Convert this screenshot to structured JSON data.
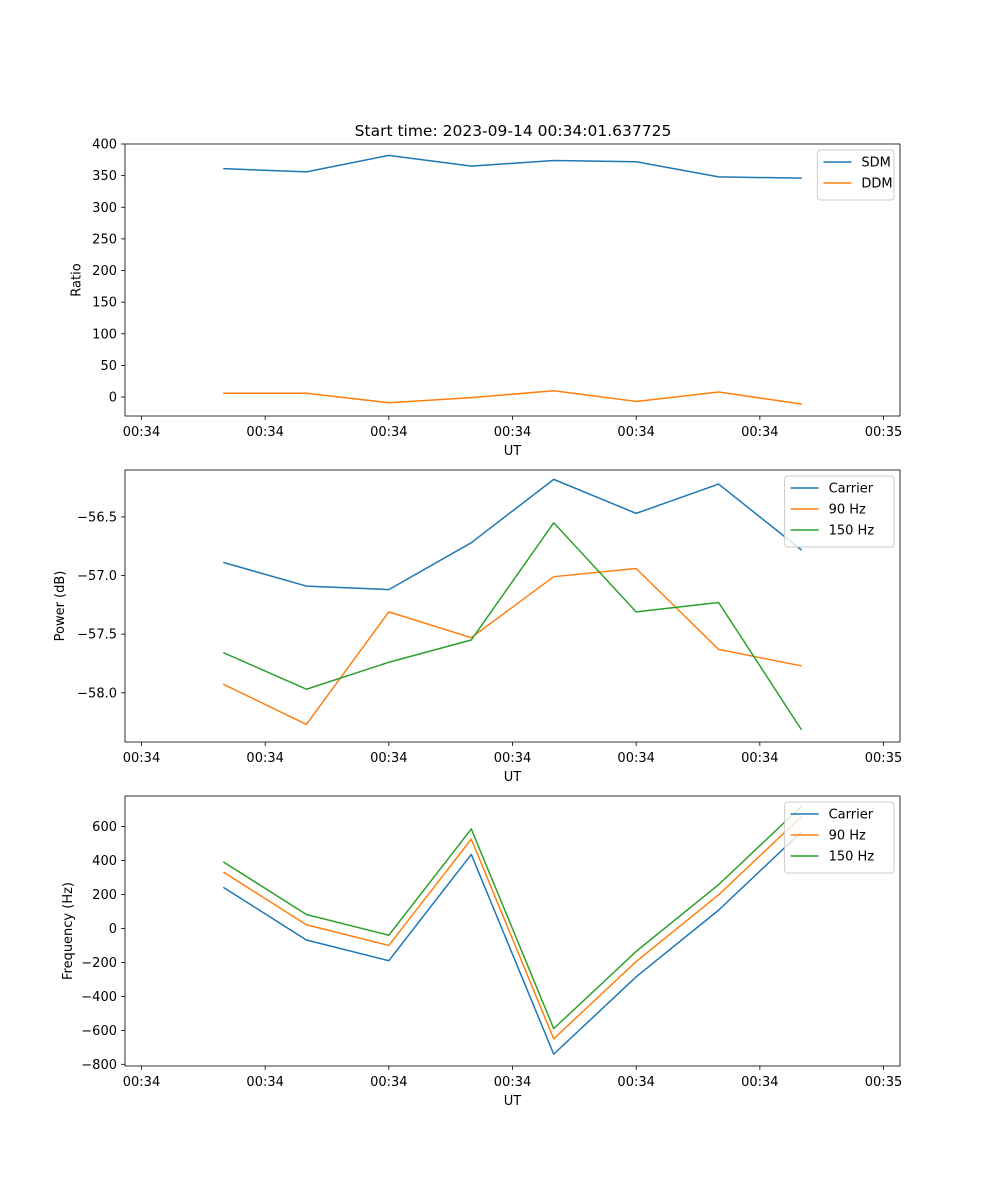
{
  "figure_title": "Start time: 2023-09-14 00:34:01.637725",
  "chart_data": [
    {
      "type": "line",
      "name": "ratio",
      "title": "Start time: 2023-09-14 00:34:01.637725",
      "xlabel": "UT",
      "ylabel": "Ratio",
      "x": [
        1,
        2,
        3,
        4,
        5,
        6,
        7,
        8
      ],
      "xlim": [
        -0.2,
        9.2
      ],
      "xticks": [
        0,
        1.5,
        3,
        4.5,
        6,
        7.5,
        9
      ],
      "xtick_labels": [
        "00:34",
        "00:34",
        "00:34",
        "00:34",
        "00:34",
        "00:34",
        "00:35"
      ],
      "ylim": [
        -30,
        400
      ],
      "yticks": [
        0,
        50,
        100,
        150,
        200,
        250,
        300,
        350,
        400
      ],
      "ytick_labels": [
        "0",
        "50",
        "100",
        "150",
        "200",
        "250",
        "300",
        "350",
        "400"
      ],
      "legend_position": "top-right",
      "series": [
        {
          "name": "SDM",
          "color": "#1f77b4",
          "values": [
            361,
            356,
            382,
            365,
            374,
            372,
            348,
            346
          ]
        },
        {
          "name": "DDM",
          "color": "#ff7f0e",
          "values": [
            6,
            6,
            -9,
            -1,
            10,
            -7,
            8,
            -11
          ]
        }
      ]
    },
    {
      "type": "line",
      "name": "power",
      "title": "",
      "xlabel": "UT",
      "ylabel": "Power (dB)",
      "x": [
        1,
        2,
        3,
        4,
        5,
        6,
        7,
        8
      ],
      "xlim": [
        -0.2,
        9.2
      ],
      "xticks": [
        0,
        1.5,
        3,
        4.5,
        6,
        7.5,
        9
      ],
      "xtick_labels": [
        "00:34",
        "00:34",
        "00:34",
        "00:34",
        "00:34",
        "00:34",
        "00:35"
      ],
      "ylim": [
        -58.42,
        -56.1
      ],
      "yticks": [
        -58.0,
        -57.5,
        -57.0,
        -56.5
      ],
      "ytick_labels": [
        "−58.0",
        "−57.5",
        "−57.0",
        "−56.5"
      ],
      "legend_position": "top-right",
      "series": [
        {
          "name": "Carrier",
          "color": "#1f77b4",
          "values": [
            -56.89,
            -57.09,
            -57.12,
            -56.72,
            -56.18,
            -56.47,
            -56.22,
            -56.78
          ]
        },
        {
          "name": "90 Hz",
          "color": "#ff7f0e",
          "values": [
            -57.93,
            -58.27,
            -57.31,
            -57.53,
            -57.01,
            -56.94,
            -57.63,
            -57.77
          ]
        },
        {
          "name": "150 Hz",
          "color": "#2ca02c",
          "values": [
            -57.66,
            -57.97,
            -57.74,
            -57.55,
            -56.55,
            -57.31,
            -57.23,
            -58.31
          ]
        }
      ]
    },
    {
      "type": "line",
      "name": "frequency",
      "title": "",
      "xlabel": "UT",
      "ylabel": "Frequency (Hz)",
      "x": [
        1,
        2,
        3,
        4,
        5,
        6,
        7,
        8
      ],
      "xlim": [
        -0.2,
        9.2
      ],
      "xticks": [
        0,
        1.5,
        3,
        4.5,
        6,
        7.5,
        9
      ],
      "xtick_labels": [
        "00:34",
        "00:34",
        "00:34",
        "00:34",
        "00:34",
        "00:34",
        "00:35"
      ],
      "ylim": [
        -810,
        780
      ],
      "yticks": [
        -800,
        -600,
        -400,
        -200,
        0,
        200,
        400,
        600
      ],
      "ytick_labels": [
        "−800",
        "−600",
        "−400",
        "−200",
        "0",
        "200",
        "400",
        "600"
      ],
      "legend_position": "top-right",
      "series": [
        {
          "name": "Carrier",
          "color": "#1f77b4",
          "values": [
            240,
            -68,
            -190,
            436,
            -740,
            -285,
            108,
            567
          ]
        },
        {
          "name": "90 Hz",
          "color": "#ff7f0e",
          "values": [
            330,
            22,
            -100,
            526,
            -650,
            -195,
            198,
            657
          ]
        },
        {
          "name": "150 Hz",
          "color": "#2ca02c",
          "values": [
            390,
            82,
            -40,
            586,
            -590,
            -135,
            258,
            717
          ]
        }
      ]
    }
  ]
}
